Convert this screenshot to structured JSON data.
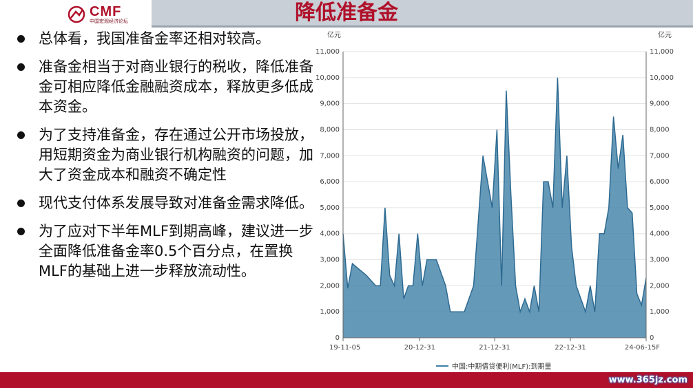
{
  "header": {
    "logo_text": "CMF",
    "logo_sub": "中国宏观经济论坛",
    "title": "降低准备金"
  },
  "bullets": [
    "总体看，我国准备金率还相对较高。",
    "准备金相当于对商业银行的税收，降低准备金可相应降低金融融资成本，释放更多低成本资金。",
    "为了支持准备金，存在通过公开市场投放，用短期资金为商业银行机构融资的问题，加大了资金成本和融资不确定性",
    "现代支付体系发展导致对准备金需求降低。",
    "为了应对下半年MLF到期高峰，建议进一步全面降低准备金率0.5个百分点，在置换MLF的基础上进一步释放流动性。"
  ],
  "chart_data": {
    "type": "area",
    "unit_left": "亿元",
    "unit_right": "亿元",
    "ylim": [
      0,
      11000
    ],
    "yticks": [
      0,
      1000,
      2000,
      3000,
      4000,
      5000,
      6000,
      7000,
      8000,
      9000,
      10000,
      11000
    ],
    "ytick_labels": [
      "0",
      "1,000",
      "2,000",
      "3,000",
      "4,000",
      "5,000",
      "6,000",
      "7,000",
      "8,000",
      "9,000",
      "10,000",
      "11,000"
    ],
    "x_ticks": [
      "19-11-05",
      "20-12-31",
      "21-12-31",
      "22-12-31",
      "24-06-15F"
    ],
    "legend": "中国:中期借贷便利(MLF):到期量",
    "color": "#3f7fa6",
    "series": [
      {
        "values": [
          4000,
          1900,
          2850,
          2700,
          2550,
          2400,
          2200,
          2000,
          2000,
          5000,
          2400,
          2000,
          4000,
          1500,
          2000,
          2000,
          4000,
          2000,
          3000,
          3000,
          3000,
          2500,
          2000,
          1000,
          1000,
          1000,
          1000,
          1500,
          2000,
          4500,
          7000,
          6000,
          5000,
          8000,
          2000,
          9500,
          5500,
          2000,
          1000,
          1500,
          1000,
          2000,
          1000,
          6000,
          6000,
          5000,
          10000,
          5000,
          7000,
          3500,
          2000,
          1500,
          1000,
          2000,
          1000,
          4000,
          4000,
          5000,
          8500,
          6500,
          7800,
          5000,
          4800,
          1700,
          1250,
          2300
        ]
      }
    ]
  },
  "watermark": "www.365jz.com"
}
